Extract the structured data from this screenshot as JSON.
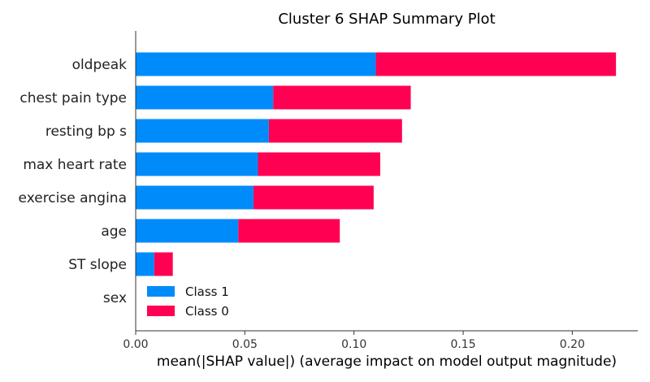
{
  "chart_data": {
    "type": "bar",
    "stacked": true,
    "orientation": "horizontal",
    "title": "Cluster 6 SHAP Summary Plot",
    "xlabel": "mean(|SHAP value|) (average impact on model output magnitude)",
    "ylabel": "",
    "xlim": [
      0,
      0.23
    ],
    "xticks": [
      "0.00",
      "0.05",
      "0.10",
      "0.15",
      "0.20"
    ],
    "categories": [
      "oldpeak",
      "chest pain type",
      "resting bp s",
      "max heart rate",
      "exercise angina",
      "age",
      "ST slope",
      "sex"
    ],
    "series": [
      {
        "name": "Class 1",
        "color": "#008bfb",
        "values": [
          0.11,
          0.063,
          0.061,
          0.056,
          0.054,
          0.047,
          0.0085,
          0.0
        ]
      },
      {
        "name": "Class 0",
        "color": "#ff0052",
        "values": [
          0.11,
          0.063,
          0.061,
          0.056,
          0.055,
          0.0465,
          0.0085,
          0.0
        ]
      }
    ],
    "grid": false,
    "legend_position": "bottom-left"
  }
}
